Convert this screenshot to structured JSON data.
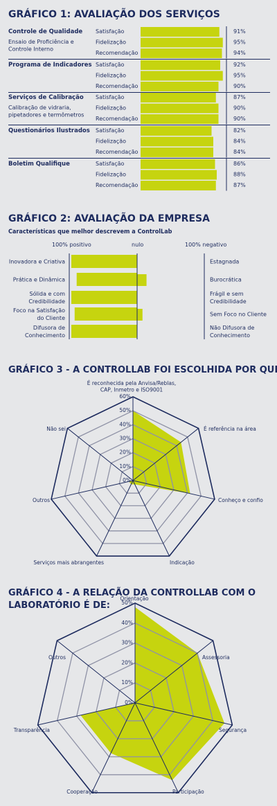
{
  "colors": {
    "accent": "#c6d40f",
    "navy": "#1d2b5e",
    "background": "#e6e7e9",
    "grid": "#8f92a6"
  },
  "chart_data": [
    {
      "type": "bar",
      "title": "GRÁFICO 1: AVALIAÇÃO DOS SERVIÇOS",
      "xlim": [
        0,
        100
      ],
      "groups": [
        {
          "name": "Controle de Qualidade",
          "subtitle": "Ensaio de Proficiência e Controle Interno",
          "items": [
            {
              "label": "Satisfação",
              "value": 91,
              "value_label": "91%"
            },
            {
              "label": "Fidelização",
              "value": 95,
              "value_label": "95%"
            },
            {
              "label": "Recomendação",
              "value": 94,
              "value_label": "94%"
            }
          ]
        },
        {
          "name": "Programa de Indicadores",
          "subtitle": "",
          "items": [
            {
              "label": "Satisfação",
              "value": 92,
              "value_label": "92%"
            },
            {
              "label": "Fidelização",
              "value": 95,
              "value_label": "95%"
            },
            {
              "label": "Recomendação",
              "value": 90,
              "value_label": "90%"
            }
          ]
        },
        {
          "name": "Serviços de Calibração",
          "subtitle": "Calibração de vidraria, pipetadores e termômetros",
          "items": [
            {
              "label": "Satisfação",
              "value": 87,
              "value_label": "87%"
            },
            {
              "label": "Fidelização",
              "value": 90,
              "value_label": "90%"
            },
            {
              "label": "Recomendação",
              "value": 90,
              "value_label": "90%"
            }
          ]
        },
        {
          "name": "Questionários Ilustrados",
          "subtitle": "",
          "items": [
            {
              "label": "Satisfação",
              "value": 82,
              "value_label": "82%"
            },
            {
              "label": "Fidelização",
              "value": 84,
              "value_label": "84%"
            },
            {
              "label": "Recomendação",
              "value": 84,
              "value_label": "84%"
            }
          ]
        },
        {
          "name": "Boletim Qualifique",
          "subtitle": "",
          "items": [
            {
              "label": "Satisfação",
              "value": 86,
              "value_label": "86%"
            },
            {
              "label": "Fidelização",
              "value": 88,
              "value_label": "88%"
            },
            {
              "label": "Recomendação",
              "value": 87,
              "value_label": "87%"
            }
          ]
        }
      ]
    },
    {
      "type": "bar",
      "title": "GRÁFICO 2: AVALIAÇÃO DA EMPRESA",
      "subtitle": "Características que melhor descrevem a ControlLab",
      "axis_labels": {
        "positive": "100% positivo",
        "neutral": "nulo",
        "negative": "100% negativo"
      },
      "xlim": [
        -100,
        100
      ],
      "rows": [
        {
          "positive": "Inovadora e Criativa",
          "negative": "Estagnada",
          "value": -98
        },
        {
          "positive": "Prática e Dinâmica",
          "negative": "Burocrática",
          "value": -90,
          "value_negative": 14
        },
        {
          "positive": "Sólida e com Credibilidade",
          "negative": "Frágil e sem Credibilidade",
          "value": -98
        },
        {
          "positive": "Foco na Satisfação do Cliente",
          "negative": "Sem Foco no Cliente",
          "value": -93,
          "value_negative": 8
        },
        {
          "positive": "Difusora de Conhecimento",
          "negative": "Não Difusora de Conhecimento",
          "value": -98
        }
      ]
    },
    {
      "type": "radar",
      "title": "GRÁFICO 3 - A CONTROLLAB FOI ESCOLHIDA POR QUE:",
      "rlim": [
        0,
        60
      ],
      "ticks": [
        "0%",
        "10%",
        "20%",
        "30%",
        "40%",
        "50%",
        "60%"
      ],
      "axes": [
        "É reconhecida pela Anvisa/Reblas, CAP, Inmetro e ISO9001",
        "É referência na área",
        "Conheço e confio",
        "Indicação",
        "Serviços mais abrangentes",
        "Outros",
        "Não sei"
      ],
      "values": [
        50,
        44,
        42,
        3,
        3,
        3,
        0
      ]
    },
    {
      "type": "radar",
      "title": "GRÁFICO 4 - A RELAÇÃO DA CONTROLLAB COM O LABORATÓRIO É DE:",
      "rlim": [
        0,
        50
      ],
      "ticks": [
        "0%",
        "10%",
        "20%",
        "30%",
        "40%",
        "50%"
      ],
      "axes": [
        "Orientação",
        "Assessoria",
        "Segurança",
        "Participação",
        "Cooperação",
        "Transparência",
        "Outros"
      ],
      "values": [
        48,
        40,
        46,
        43,
        28,
        28,
        0
      ]
    }
  ]
}
